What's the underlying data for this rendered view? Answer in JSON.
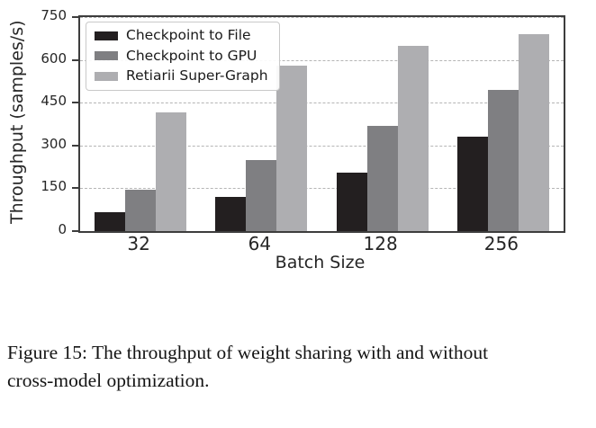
{
  "figure": {
    "caption_line1": "Figure 15: The throughput of weight sharing with and without",
    "caption_line2": "cross-model optimization."
  },
  "chart_data": {
    "type": "bar",
    "title": "",
    "xlabel": "Batch Size",
    "ylabel": "Throughput (samples/s)",
    "categories": [
      "32",
      "64",
      "128",
      "256"
    ],
    "series": [
      {
        "name": "Checkpoint to File",
        "color": "#231f20",
        "values": [
          65,
          120,
          205,
          330
        ]
      },
      {
        "name": "Checkpoint to GPU",
        "color": "#7f7f82",
        "values": [
          145,
          250,
          370,
          495
        ]
      },
      {
        "name": "Retiarii Super-Graph",
        "color": "#aeaeb1",
        "values": [
          415,
          580,
          650,
          690
        ]
      }
    ],
    "ylim": [
      0,
      750
    ],
    "yticks": [
      0,
      150,
      300,
      450,
      600,
      750
    ],
    "grid": true,
    "legend_position": "upper left"
  }
}
